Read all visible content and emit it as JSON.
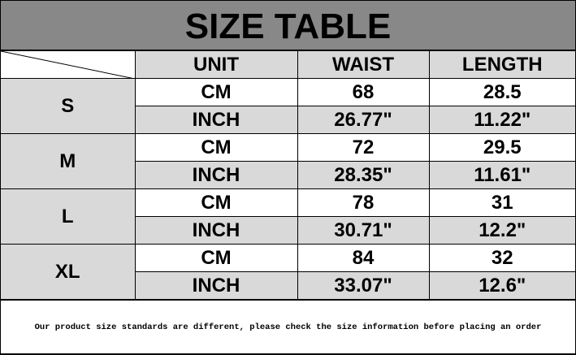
{
  "title": "SIZE TABLE",
  "headers": [
    "UNIT",
    "WAIST",
    "LENGTH"
  ],
  "rows": [
    {
      "size": "S",
      "cm": {
        "unit": "CM",
        "waist": "68",
        "length": "28.5"
      },
      "inch": {
        "unit": "INCH",
        "waist": "26.77\"",
        "length": "11.22\""
      }
    },
    {
      "size": "M",
      "cm": {
        "unit": "CM",
        "waist": "72",
        "length": "29.5"
      },
      "inch": {
        "unit": "INCH",
        "waist": "28.35\"",
        "length": "11.61\""
      }
    },
    {
      "size": "L",
      "cm": {
        "unit": "CM",
        "waist": "78",
        "length": "31"
      },
      "inch": {
        "unit": "INCH",
        "waist": "30.71\"",
        "length": "12.2\""
      }
    },
    {
      "size": "XL",
      "cm": {
        "unit": "CM",
        "waist": "84",
        "length": "32"
      },
      "inch": {
        "unit": "INCH",
        "waist": "33.07\"",
        "length": "12.6\""
      }
    }
  ],
  "note": "Our product size standards are different, please check the size information before placing an order"
}
